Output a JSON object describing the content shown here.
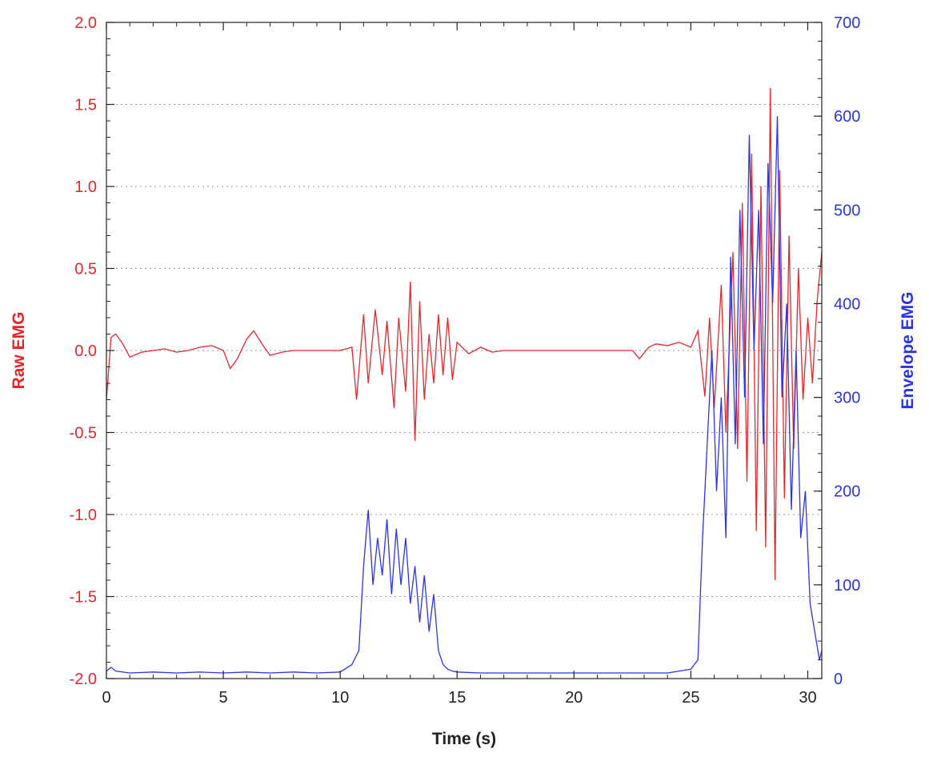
{
  "chart_data": {
    "type": "line",
    "title": "",
    "xlabel": "Time (s)",
    "ylabel_left": "Raw EMG",
    "ylabel_right": "Envelope EMG",
    "xlim": [
      0,
      30.6
    ],
    "ylim_left": [
      -2.0,
      2.0
    ],
    "ylim_right": [
      0,
      700
    ],
    "x_ticks": [
      0,
      5,
      10,
      15,
      20,
      25,
      30
    ],
    "y_left_ticks": [
      -2.0,
      -1.5,
      -1.0,
      -0.5,
      0.0,
      0.5,
      1.0,
      1.5,
      2.0
    ],
    "y_left_tick_labels": [
      "-2.0",
      "-1.5",
      "-1.0",
      "-0.5",
      "0.0",
      "0.5",
      "1.0",
      "1.5",
      "2.0"
    ],
    "y_right_ticks": [
      0,
      100,
      200,
      300,
      400,
      500,
      600,
      700
    ],
    "grid": "horizontal dotted",
    "colors": {
      "raw": "#e8262a",
      "envelope": "#2b35e6",
      "axis": "#222222",
      "grid": "#9a9a9a"
    },
    "series": [
      {
        "axis": "left",
        "color": "#e8262a",
        "x": [
          0.0,
          0.2,
          0.4,
          0.7,
          1.0,
          1.5,
          2.0,
          2.5,
          3.0,
          3.5,
          4.0,
          4.5,
          5.0,
          5.3,
          5.6,
          6.0,
          6.3,
          6.7,
          7.0,
          7.5,
          8.0,
          9.0,
          10.0,
          10.5,
          10.7,
          11.0,
          11.2,
          11.5,
          11.8,
          12.0,
          12.3,
          12.5,
          12.8,
          13.0,
          13.2,
          13.4,
          13.6,
          13.8,
          14.0,
          14.2,
          14.4,
          14.6,
          14.8,
          15.0,
          15.5,
          16.0,
          16.5,
          17.0,
          18.0,
          19.0,
          20.0,
          21.0,
          22.0,
          22.5,
          22.8,
          23.2,
          23.5,
          24.0,
          24.5,
          25.0,
          25.3,
          25.6,
          25.8,
          26.0,
          26.3,
          26.5,
          26.8,
          27.0,
          27.2,
          27.4,
          27.6,
          27.8,
          28.0,
          28.2,
          28.4,
          28.6,
          28.8,
          29.0,
          29.2,
          29.4,
          29.6,
          29.8,
          30.0,
          30.2,
          30.4,
          30.6
        ],
        "y": [
          -0.3,
          0.08,
          0.1,
          0.04,
          -0.04,
          -0.01,
          0.0,
          0.01,
          -0.01,
          0.0,
          0.02,
          0.03,
          0.0,
          -0.11,
          -0.05,
          0.07,
          0.12,
          0.03,
          -0.03,
          -0.01,
          0.0,
          0.0,
          0.0,
          0.02,
          -0.3,
          0.22,
          -0.2,
          0.25,
          -0.15,
          0.18,
          -0.35,
          0.2,
          -0.25,
          0.42,
          -0.55,
          0.3,
          -0.3,
          0.1,
          -0.2,
          0.22,
          -0.15,
          0.2,
          -0.18,
          0.05,
          -0.02,
          0.02,
          -0.01,
          0.0,
          0.0,
          0.0,
          0.0,
          0.0,
          0.0,
          0.0,
          -0.05,
          0.02,
          0.04,
          0.03,
          0.05,
          0.02,
          0.12,
          -0.28,
          0.2,
          -0.35,
          0.4,
          -0.5,
          0.6,
          -0.6,
          0.9,
          -0.8,
          1.2,
          -1.1,
          1.0,
          -1.2,
          1.6,
          -1.4,
          1.1,
          -0.9,
          0.7,
          -0.6,
          0.5,
          -0.3,
          0.2,
          -0.2,
          0.3,
          0.6
        ]
      },
      {
        "axis": "right",
        "color": "#2b35e6",
        "x": [
          0.0,
          0.2,
          0.4,
          1.0,
          2.0,
          3.0,
          4.0,
          5.0,
          6.0,
          7.0,
          8.0,
          9.0,
          10.0,
          10.5,
          10.8,
          11.0,
          11.2,
          11.4,
          11.6,
          11.8,
          12.0,
          12.2,
          12.4,
          12.6,
          12.8,
          13.0,
          13.2,
          13.4,
          13.6,
          13.8,
          14.0,
          14.2,
          14.4,
          14.6,
          14.8,
          15.0,
          16.0,
          17.0,
          18.0,
          19.0,
          20.0,
          21.0,
          22.0,
          23.0,
          24.0,
          25.0,
          25.3,
          25.5,
          25.7,
          25.9,
          26.1,
          26.3,
          26.5,
          26.7,
          26.9,
          27.1,
          27.3,
          27.5,
          27.7,
          27.9,
          28.1,
          28.3,
          28.5,
          28.7,
          28.9,
          29.1,
          29.3,
          29.5,
          29.7,
          29.9,
          30.1,
          30.3,
          30.5,
          30.6
        ],
        "y": [
          8,
          12,
          8,
          6,
          7,
          6,
          7,
          6,
          7,
          6,
          7,
          6,
          7,
          15,
          30,
          120,
          180,
          100,
          150,
          110,
          170,
          90,
          160,
          100,
          150,
          80,
          120,
          60,
          110,
          50,
          90,
          30,
          15,
          10,
          8,
          7,
          6,
          6,
          6,
          6,
          6,
          6,
          6,
          6,
          6,
          10,
          20,
          150,
          250,
          350,
          200,
          300,
          150,
          450,
          250,
          500,
          300,
          580,
          350,
          500,
          250,
          550,
          400,
          600,
          300,
          400,
          180,
          350,
          150,
          200,
          80,
          50,
          20,
          30
        ]
      }
    ]
  }
}
